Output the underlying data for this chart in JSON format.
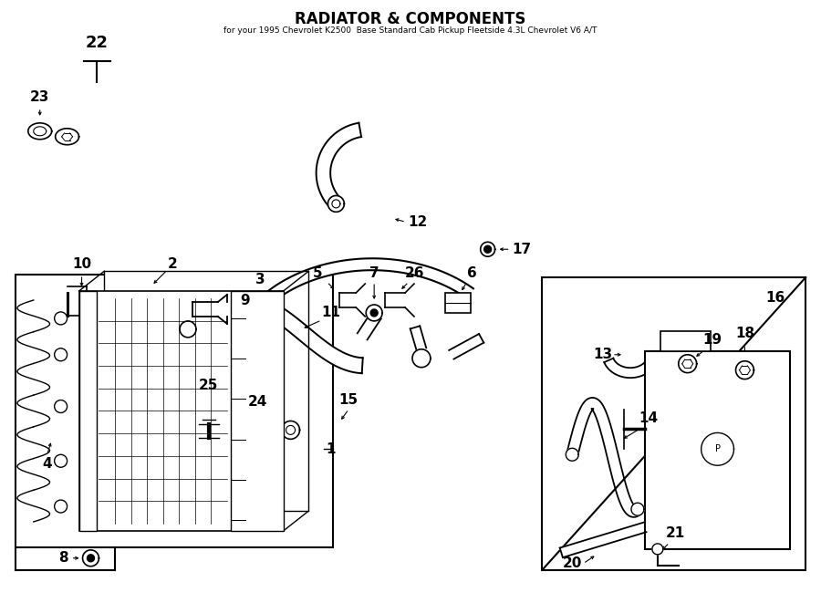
{
  "title": "RADIATOR & COMPONENTS",
  "subtitle": "for your 1995 Chevrolet K2500  Base Standard Cab Pickup Fleetside 4.3L Chevrolet V6 A/T",
  "bg_color": "#ffffff",
  "line_color": "#000000"
}
